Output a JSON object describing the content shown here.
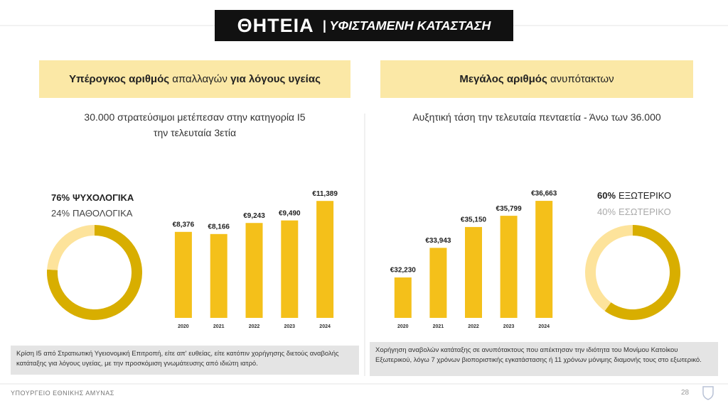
{
  "header": {
    "title": "ΘΗΤΕΙΑ",
    "subtitle": "| ΥΦΙΣΤΑΜΕΝΗ ΚΑΤΑΣΤΑΣΗ"
  },
  "panels": [
    {
      "heading": [
        "Υπέρογκος αριθμός",
        "απαλλαγών",
        "για λόγους υγείας"
      ],
      "subtitle": [
        "30.000 στρατεύσιμοι μετέπεσαν στην κατηγορία Ι5",
        "την τελευταία 3ετία"
      ],
      "note": "Κρίση Ι5 από Στρατιωτική Υγειονομική Επιτροπή, είτε απ' ευθείας, είτε κατόπιν χορήγησης διετούς αναβολής κατάταξης για λόγους υγείας, με την προσκόμιση γνωμάτευσης από ιδιώτη ιατρό."
    },
    {
      "heading": [
        "Μεγάλος αριθμός",
        "ανυπότακτων"
      ],
      "subtitle": [
        "Αυξητική τάση την τελευταία πενταετία - Άνω των 36.000"
      ],
      "note": "Χορήγηση αναβολών κατάταξης σε ανυπότακτους που απέκτησαν την ιδιότητα του Μονίμου Κατοίκου Εξωτερικού, λόγω 7 χρόνων βιοποριστικής εγκατάστασης ή 11 χρόνων μόνιμης διαμονής τους στο εξωτερικό."
    }
  ],
  "chart_data": [
    {
      "type": "pie",
      "donut": true,
      "categories": [
        "ΨΥΧΟΛΟΓΙΚΑ",
        "ΠΑΘΟΛΟΓΙΚΑ"
      ],
      "values": [
        76,
        24
      ],
      "value_labels": [
        "76%",
        "24%"
      ],
      "colors": [
        "#d8ae00",
        "#fde39b"
      ]
    },
    {
      "type": "bar",
      "categories": [
        "2020",
        "2021",
        "2022",
        "2023",
        "2024"
      ],
      "values": [
        8376,
        8166,
        9243,
        9490,
        11389
      ],
      "value_labels": [
        "€8,376",
        "€8,166",
        "€9,243",
        "€9,490",
        "€11,389"
      ],
      "color": "#f4c01a",
      "ylim": [
        0,
        12300
      ]
    },
    {
      "type": "bar",
      "categories": [
        "2020",
        "2021",
        "2022",
        "2023",
        "2024"
      ],
      "values": [
        32230,
        33943,
        35150,
        35799,
        36663
      ],
      "value_labels": [
        "€32,230",
        "€33,943",
        "€35,150",
        "€35,799",
        "€36,663"
      ],
      "color": "#f4c01a",
      "ylim": [
        29890,
        37200
      ]
    },
    {
      "type": "pie",
      "donut": true,
      "categories": [
        "ΕΞΩΤΕΡΙΚΟ",
        "ΕΣΩΤΕΡΙΚΟ"
      ],
      "values": [
        60,
        40
      ],
      "value_labels": [
        "60%",
        "40%"
      ],
      "colors": [
        "#d8ae00",
        "#fde39b"
      ]
    }
  ],
  "footer": {
    "text": "ΥΠΟΥΡΓΕΙΟ ΕΘΝΙΚΗΣ ΑΜΥΝΑΣ",
    "page": 28
  }
}
